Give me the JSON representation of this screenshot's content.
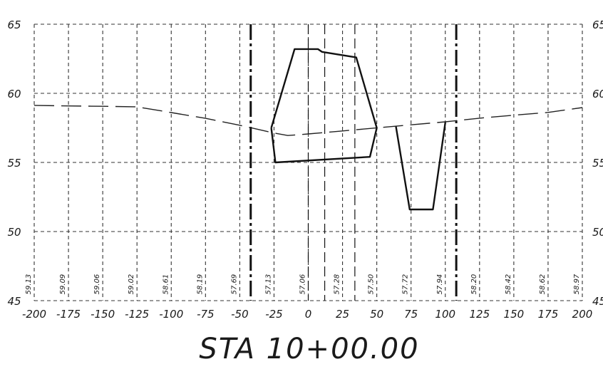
{
  "chart_data": {
    "type": "line",
    "title": "STA 10+00.00",
    "xlim": [
      -200,
      200
    ],
    "ylim": [
      45,
      65
    ],
    "grid": true,
    "x_ticks": [
      -200,
      -175,
      -150,
      -125,
      -100,
      -75,
      -50,
      -25,
      0,
      25,
      50,
      75,
      100,
      125,
      150,
      175,
      200
    ],
    "x_tick_labels": [
      "-200",
      "-175",
      "-150",
      "-125",
      "-100",
      "-75",
      "-50",
      "-25",
      "0",
      "25",
      "50",
      "75",
      "100",
      "125",
      "150",
      "175",
      "200"
    ],
    "y_ticks": [
      45,
      50,
      55,
      60,
      65
    ],
    "y_tick_labels_left": [
      "45",
      "50",
      "55",
      "60",
      "65"
    ],
    "y_tick_labels_right": [
      "45",
      "50",
      "55",
      "60",
      "65"
    ],
    "elevation_labels": [
      {
        "x": -200,
        "text": "59.13"
      },
      {
        "x": -175,
        "text": "59.09"
      },
      {
        "x": -150,
        "text": "59.06"
      },
      {
        "x": -125,
        "text": "59.02"
      },
      {
        "x": -100,
        "text": "58.61"
      },
      {
        "x": -75,
        "text": "58.19"
      },
      {
        "x": -50,
        "text": "57.69"
      },
      {
        "x": -25,
        "text": "57.13"
      },
      {
        "x": 0,
        "text": "57.06"
      },
      {
        "x": 25,
        "text": "57.28"
      },
      {
        "x": 50,
        "text": "57.50"
      },
      {
        "x": 75,
        "text": "57.72"
      },
      {
        "x": 100,
        "text": "57.94"
      },
      {
        "x": 125,
        "text": "58.20"
      },
      {
        "x": 150,
        "text": "58.42"
      },
      {
        "x": 175,
        "text": "58.62"
      },
      {
        "x": 200,
        "text": "58.97"
      }
    ],
    "series": [
      {
        "style": "long-dash",
        "points": [
          [
            -200,
            59.13
          ],
          [
            -175,
            59.09
          ],
          [
            -150,
            59.06
          ],
          [
            -125,
            59.02
          ],
          [
            -100,
            58.61
          ],
          [
            -75,
            58.19
          ],
          [
            -50,
            57.69
          ],
          [
            -25,
            57.13
          ],
          [
            -15,
            56.95
          ],
          [
            0,
            57.06
          ],
          [
            25,
            57.28
          ],
          [
            50,
            57.5
          ],
          [
            75,
            57.72
          ],
          [
            100,
            57.94
          ],
          [
            125,
            58.2
          ],
          [
            150,
            58.42
          ],
          [
            175,
            58.62
          ],
          [
            200,
            58.97
          ]
        ]
      },
      {
        "style": "solid-bold",
        "points": [
          [
            -27,
            57.5
          ],
          [
            -10,
            63.2
          ],
          [
            7,
            63.2
          ],
          [
            10,
            63.0
          ],
          [
            35,
            62.6
          ],
          [
            50,
            57.5
          ],
          [
            45,
            55.4
          ],
          [
            -24,
            55.0
          ],
          [
            -27,
            57.5
          ]
        ]
      },
      {
        "style": "solid-bold",
        "points": [
          [
            64,
            57.6
          ],
          [
            74,
            51.6
          ],
          [
            91,
            51.6
          ],
          [
            100,
            57.9
          ]
        ]
      }
    ],
    "vertical_lines": [
      {
        "x": -42,
        "style": "dash-dot-bold"
      },
      {
        "x": 108,
        "style": "dash-dot-bold"
      },
      {
        "x": 0,
        "style": "long-dash"
      },
      {
        "x": 12,
        "style": "long-dash"
      },
      {
        "x": 34,
        "style": "long-dash"
      }
    ]
  }
}
